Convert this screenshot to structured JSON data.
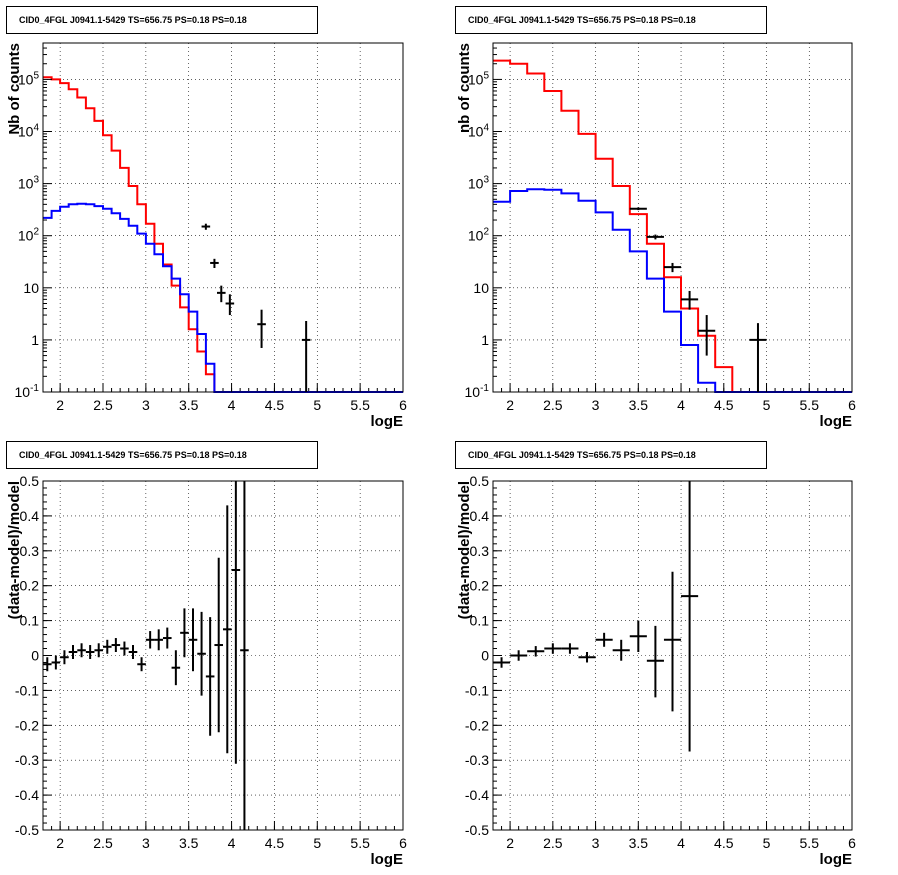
{
  "chart_data": [
    {
      "type": "line",
      "title": "CID0_4FGL J0941.1-5429 TS=656.75 PS=0.18 PS=0.18",
      "xlabel": "logE",
      "ylabel": "Nb of counts",
      "xlim": [
        1.8,
        6.0
      ],
      "ylim": [
        0.1,
        500000
      ],
      "yscale": "log",
      "grid": true,
      "xticks": [
        2,
        2.5,
        3,
        3.5,
        4,
        4.5,
        5,
        5.5,
        6
      ],
      "xticklabels": [
        "2",
        "2.5",
        "3",
        "3.5",
        "4",
        "4.5",
        "5",
        "5.5",
        "6"
      ],
      "yticks": [
        0.1,
        1,
        10,
        100,
        1000,
        10000,
        100000
      ],
      "yticklabels": [
        "10^-1",
        "1",
        "10",
        "10^2",
        "10^3",
        "10^4",
        "10^5"
      ],
      "series": [
        {
          "color": "#ff0000",
          "style": "step",
          "edges": [
            1.8,
            1.9,
            2.0,
            2.1,
            2.2,
            2.3,
            2.4,
            2.5,
            2.6,
            2.7,
            2.8,
            2.9,
            3.0,
            3.1,
            3.2,
            3.3,
            3.4,
            3.5,
            3.6,
            3.7,
            3.8,
            3.9,
            4.0,
            4.1,
            4.2,
            4.3,
            4.4,
            4.5,
            4.6,
            4.7,
            4.8,
            4.9,
            5.0,
            5.1,
            5.2,
            5.3,
            5.4,
            5.5,
            5.6,
            5.7,
            5.8,
            5.9,
            6.0
          ],
          "values": [
            110000,
            100000,
            85000,
            65000,
            45000,
            28000,
            16000,
            8500,
            4300,
            2000,
            900,
            400,
            170,
            70,
            28,
            11,
            4.2,
            1.6,
            0.6,
            0.22,
            0.1,
            0.1,
            0.1,
            0.1,
            0.1,
            0.1,
            0.1,
            0.1,
            0.1,
            0.1,
            0.1,
            0.1,
            0.1,
            0.1,
            0.1,
            0.1,
            0.1,
            0.1,
            0.1,
            0.1,
            0.1,
            0.1
          ]
        },
        {
          "color": "#0000ff",
          "style": "step",
          "edges": [
            1.8,
            1.9,
            2.0,
            2.1,
            2.2,
            2.3,
            2.4,
            2.5,
            2.6,
            2.7,
            2.8,
            2.9,
            3.0,
            3.1,
            3.2,
            3.3,
            3.4,
            3.5,
            3.6,
            3.7,
            3.8,
            3.9,
            4.0,
            4.1,
            4.2,
            4.3,
            4.4,
            4.5,
            4.6,
            4.7,
            4.8,
            4.9,
            5.0,
            5.1,
            5.2,
            5.3,
            5.4,
            5.5,
            5.6,
            5.7,
            5.8,
            5.9,
            6.0
          ],
          "values": [
            220,
            300,
            360,
            400,
            410,
            400,
            370,
            330,
            270,
            210,
            155,
            110,
            70,
            44,
            26,
            15,
            7.5,
            3.5,
            1.3,
            0.35,
            0.1,
            0.1,
            0.1,
            0.1,
            0.1,
            0.1,
            0.1,
            0.1,
            0.1,
            0.1,
            0.1,
            0.1,
            0.1,
            0.1,
            0.1,
            0.1,
            0.1,
            0.1,
            0.1,
            0.1,
            0.1,
            0.1
          ]
        },
        {
          "color": "#000000",
          "style": "errorbar",
          "points": [
            {
              "x": 3.7,
              "y": 150,
              "xerr": 0.05,
              "lo": 130,
              "hi": 170
            },
            {
              "x": 3.8,
              "y": 30,
              "xerr": 0.05,
              "lo": 24,
              "hi": 36
            },
            {
              "x": 3.88,
              "y": 8,
              "xerr": 0.05,
              "lo": 5.3,
              "hi": 11
            },
            {
              "x": 3.98,
              "y": 5,
              "xerr": 0.05,
              "lo": 3,
              "hi": 7.5
            },
            {
              "x": 4.35,
              "y": 2,
              "xerr": 0.05,
              "lo": 0.7,
              "hi": 3.8
            },
            {
              "x": 4.87,
              "y": 1,
              "xerr": 0.05,
              "lo": 0.1,
              "hi": 2.3
            }
          ]
        }
      ]
    },
    {
      "type": "line",
      "title": "CID0_4FGL J0941.1-5429 TS=656.75 PS=0.18 PS=0.18",
      "xlabel": "logE",
      "ylabel": "nb of counts",
      "xlim": [
        1.8,
        6.0
      ],
      "ylim": [
        0.1,
        500000
      ],
      "yscale": "log",
      "grid": true,
      "xticks": [
        2,
        2.5,
        3,
        3.5,
        4,
        4.5,
        5,
        5.5,
        6
      ],
      "xticklabels": [
        "2",
        "2.5",
        "3",
        "3.5",
        "4",
        "4.5",
        "5",
        "5.5",
        "6"
      ],
      "yticks": [
        0.1,
        1,
        10,
        100,
        1000,
        10000,
        100000
      ],
      "yticklabels": [
        "10^-1",
        "1",
        "10",
        "10^2",
        "10^3",
        "10^4",
        "10^5"
      ],
      "series": [
        {
          "color": "#ff0000",
          "style": "step",
          "edges": [
            1.8,
            2.0,
            2.2,
            2.4,
            2.6,
            2.8,
            3.0,
            3.2,
            3.4,
            3.6,
            3.8,
            4.0,
            4.2,
            4.4,
            4.6,
            4.8,
            5.0,
            5.2,
            5.4,
            5.6,
            5.8,
            6.0
          ],
          "values": [
            230000,
            200000,
            130000,
            60000,
            25000,
            9000,
            3000,
            900,
            260,
            70,
            16,
            4,
            1.2,
            0.3,
            0.1,
            0.1,
            0.1,
            0.1,
            0.1,
            0.1,
            0.1
          ]
        },
        {
          "color": "#0000ff",
          "style": "step",
          "edges": [
            1.8,
            2.0,
            2.2,
            2.4,
            2.6,
            2.8,
            3.0,
            3.2,
            3.4,
            3.6,
            3.8,
            4.0,
            4.2,
            4.4,
            4.6,
            4.8,
            5.0,
            5.2,
            5.4,
            5.6,
            5.8,
            6.0
          ],
          "values": [
            450,
            720,
            780,
            760,
            650,
            470,
            280,
            130,
            50,
            15,
            3.5,
            0.8,
            0.15,
            0.1,
            0.1,
            0.1,
            0.1,
            0.1,
            0.1,
            0.1,
            0.1
          ]
        },
        {
          "color": "#000000",
          "style": "errorbar",
          "points": [
            {
              "x": 3.5,
              "y": 330,
              "xerr": 0.1,
              "lo": 310,
              "hi": 350
            },
            {
              "x": 3.7,
              "y": 95,
              "xerr": 0.1,
              "lo": 85,
              "hi": 105
            },
            {
              "x": 3.9,
              "y": 25,
              "xerr": 0.1,
              "lo": 20,
              "hi": 30
            },
            {
              "x": 4.1,
              "y": 6,
              "xerr": 0.1,
              "lo": 3.8,
              "hi": 8.7
            },
            {
              "x": 4.3,
              "y": 1.5,
              "xerr": 0.1,
              "lo": 0.5,
              "hi": 3
            },
            {
              "x": 4.9,
              "y": 1,
              "xerr": 0.1,
              "lo": 0.1,
              "hi": 2.1
            }
          ]
        }
      ]
    },
    {
      "type": "scatter",
      "title": "CID0_4FGL J0941.1-5429 TS=656.75 PS=0.18 PS=0.18",
      "xlabel": "logE",
      "ylabel": "(data-model)/model",
      "xlim": [
        1.8,
        6.0
      ],
      "ylim": [
        -0.5,
        0.5
      ],
      "grid": true,
      "xticks": [
        2,
        2.5,
        3,
        3.5,
        4,
        4.5,
        5,
        5.5,
        6
      ],
      "xticklabels": [
        "2",
        "2.5",
        "3",
        "3.5",
        "4",
        "4.5",
        "5",
        "5.5",
        "6"
      ],
      "yticks": [
        -0.5,
        -0.4,
        -0.3,
        -0.2,
        -0.1,
        0,
        0.1,
        0.2,
        0.3,
        0.4,
        0.5
      ],
      "yticklabels": [
        "-0.5",
        "-0.4",
        "-0.3",
        "-0.2",
        "-0.1",
        "0",
        "0.1",
        "0.2",
        "0.3",
        "0.4",
        "0.5"
      ],
      "series": [
        {
          "color": "#000000",
          "style": "errorbar",
          "points": [
            {
              "x": 1.85,
              "y": -0.025,
              "xerr": 0.05,
              "lo": -0.045,
              "hi": -0.005
            },
            {
              "x": 1.95,
              "y": -0.02,
              "xerr": 0.05,
              "lo": -0.04,
              "hi": 0.0
            },
            {
              "x": 2.05,
              "y": -0.005,
              "xerr": 0.05,
              "lo": -0.025,
              "hi": 0.015
            },
            {
              "x": 2.15,
              "y": 0.01,
              "xerr": 0.05,
              "lo": -0.01,
              "hi": 0.03
            },
            {
              "x": 2.25,
              "y": 0.015,
              "xerr": 0.05,
              "lo": -0.005,
              "hi": 0.035
            },
            {
              "x": 2.35,
              "y": 0.01,
              "xerr": 0.05,
              "lo": -0.01,
              "hi": 0.03
            },
            {
              "x": 2.45,
              "y": 0.015,
              "xerr": 0.05,
              "lo": -0.005,
              "hi": 0.035
            },
            {
              "x": 2.55,
              "y": 0.025,
              "xerr": 0.05,
              "lo": 0.005,
              "hi": 0.045
            },
            {
              "x": 2.65,
              "y": 0.03,
              "xerr": 0.05,
              "lo": 0.01,
              "hi": 0.05
            },
            {
              "x": 2.75,
              "y": 0.02,
              "xerr": 0.05,
              "lo": 0.0,
              "hi": 0.04
            },
            {
              "x": 2.85,
              "y": 0.01,
              "xerr": 0.05,
              "lo": -0.01,
              "hi": 0.03
            },
            {
              "x": 2.95,
              "y": -0.025,
              "xerr": 0.05,
              "lo": -0.045,
              "hi": -0.005
            },
            {
              "x": 3.05,
              "y": 0.045,
              "xerr": 0.05,
              "lo": 0.02,
              "hi": 0.07
            },
            {
              "x": 3.15,
              "y": 0.045,
              "xerr": 0.05,
              "lo": 0.015,
              "hi": 0.075
            },
            {
              "x": 3.25,
              "y": 0.05,
              "xerr": 0.05,
              "lo": 0.02,
              "hi": 0.08
            },
            {
              "x": 3.35,
              "y": -0.035,
              "xerr": 0.05,
              "lo": -0.085,
              "hi": 0.015
            },
            {
              "x": 3.45,
              "y": 0.065,
              "xerr": 0.05,
              "lo": -0.005,
              "hi": 0.135
            },
            {
              "x": 3.55,
              "y": 0.045,
              "xerr": 0.05,
              "lo": -0.045,
              "hi": 0.135
            },
            {
              "x": 3.65,
              "y": 0.005,
              "xerr": 0.05,
              "lo": -0.115,
              "hi": 0.125
            },
            {
              "x": 3.75,
              "y": -0.06,
              "xerr": 0.05,
              "lo": -0.23,
              "hi": 0.11
            },
            {
              "x": 3.85,
              "y": 0.03,
              "xerr": 0.05,
              "lo": -0.22,
              "hi": 0.28
            },
            {
              "x": 3.95,
              "y": 0.075,
              "xerr": 0.05,
              "lo": -0.28,
              "hi": 0.43
            },
            {
              "x": 4.05,
              "y": 0.245,
              "xerr": 0.05,
              "lo": -0.31,
              "hi": 0.5
            },
            {
              "x": 4.15,
              "y": 0.015,
              "xerr": 0.05,
              "lo": -0.5,
              "hi": 0.5
            }
          ]
        }
      ]
    },
    {
      "type": "scatter",
      "title": "CID0_4FGL J0941.1-5429 TS=656.75 PS=0.18 PS=0.18",
      "xlabel": "logE",
      "ylabel": "(data-model)/model",
      "xlim": [
        1.8,
        6.0
      ],
      "ylim": [
        -0.5,
        0.5
      ],
      "grid": true,
      "xticks": [
        2,
        2.5,
        3,
        3.5,
        4,
        4.5,
        5,
        5.5,
        6
      ],
      "xticklabels": [
        "2",
        "2.5",
        "3",
        "3.5",
        "4",
        "4.5",
        "5",
        "5.5",
        "6"
      ],
      "yticks": [
        -0.5,
        -0.4,
        -0.3,
        -0.2,
        -0.1,
        0,
        0.1,
        0.2,
        0.3,
        0.4,
        0.5
      ],
      "yticklabels": [
        "-0.5",
        "-0.4",
        "-0.3",
        "-0.2",
        "-0.1",
        "0",
        "0.1",
        "0.2",
        "0.3",
        "0.4",
        "0.5"
      ],
      "series": [
        {
          "color": "#000000",
          "style": "errorbar",
          "points": [
            {
              "x": 1.9,
              "y": -0.02,
              "xerr": 0.1,
              "lo": -0.035,
              "hi": -0.005
            },
            {
              "x": 2.1,
              "y": 0.0,
              "xerr": 0.1,
              "lo": -0.015,
              "hi": 0.015
            },
            {
              "x": 2.3,
              "y": 0.012,
              "xerr": 0.1,
              "lo": -0.003,
              "hi": 0.027
            },
            {
              "x": 2.5,
              "y": 0.02,
              "xerr": 0.1,
              "lo": 0.005,
              "hi": 0.035
            },
            {
              "x": 2.7,
              "y": 0.02,
              "xerr": 0.1,
              "lo": 0.005,
              "hi": 0.035
            },
            {
              "x": 2.9,
              "y": -0.005,
              "xerr": 0.1,
              "lo": -0.02,
              "hi": 0.01
            },
            {
              "x": 3.1,
              "y": 0.045,
              "xerr": 0.1,
              "lo": 0.025,
              "hi": 0.065
            },
            {
              "x": 3.3,
              "y": 0.015,
              "xerr": 0.1,
              "lo": -0.015,
              "hi": 0.045
            },
            {
              "x": 3.5,
              "y": 0.055,
              "xerr": 0.1,
              "lo": 0.01,
              "hi": 0.1
            },
            {
              "x": 3.7,
              "y": -0.015,
              "xerr": 0.1,
              "lo": -0.12,
              "hi": 0.085
            },
            {
              "x": 3.9,
              "y": 0.045,
              "xerr": 0.1,
              "lo": -0.16,
              "hi": 0.24
            },
            {
              "x": 4.1,
              "y": 0.17,
              "xerr": 0.1,
              "lo": -0.275,
              "hi": 0.5
            }
          ]
        }
      ]
    }
  ]
}
